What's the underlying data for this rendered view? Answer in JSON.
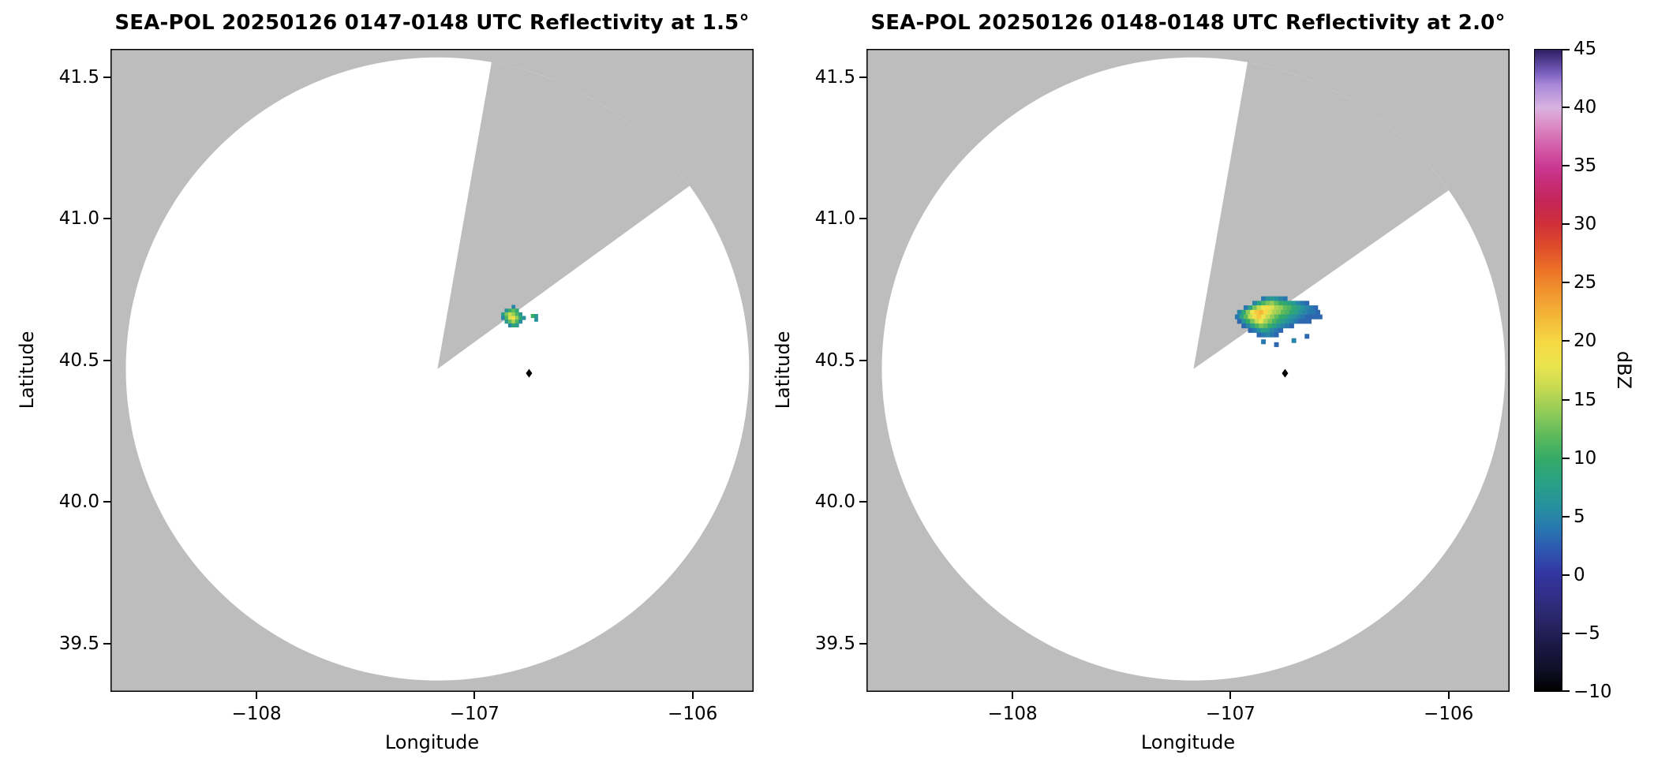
{
  "figure": {
    "background": "#ffffff"
  },
  "chart_data": [
    {
      "type": "radar_ppi_heatmap",
      "title": "SEA-POL 20250126 0147-0148 UTC Reflectivity at 1.5°",
      "xlabel": "Longitude",
      "ylabel": "Latitude",
      "xlim": [
        -108.67,
        -105.72
      ],
      "ylim": [
        39.33,
        41.6
      ],
      "xticks": [
        -108,
        -107,
        -106
      ],
      "yticks": [
        39.5,
        40.0,
        40.5,
        41.0,
        41.5
      ],
      "panel_bg": "#bdbdbd",
      "scan_area_color": "#ffffff",
      "scan": {
        "center_lon": -107.17,
        "center_lat": 40.47,
        "radius_deg_lat": 1.1,
        "missing_sector_azimuth_deg": [
          10,
          54
        ]
      },
      "site_marker": {
        "lon": -106.75,
        "lat": 40.455,
        "color": "#000000",
        "shape": "diamond"
      },
      "echo": {
        "cell_deg": [
          0.016,
          0.013
        ],
        "rows": [
          {
            "lat": 40.689,
            "lon0": -106.83,
            "dbz": [
              5
            ]
          },
          {
            "lat": 40.676,
            "lon0": -106.862,
            "dbz": [
              6,
              10,
              12,
              9
            ]
          },
          {
            "lat": 40.663,
            "lon0": -106.878,
            "dbz": [
              8,
              13,
              16,
              14,
              11,
              7
            ]
          },
          {
            "lat": 40.65,
            "lon0": -106.878,
            "dbz": [
              5,
              11,
              17,
              19,
              14,
              9,
              6
            ]
          },
          {
            "lat": 40.637,
            "lon0": -106.862,
            "dbz": [
              7,
              12,
              15,
              11,
              6
            ]
          },
          {
            "lat": 40.624,
            "lon0": -106.846,
            "dbz": [
              5,
              9,
              7
            ]
          },
          {
            "lat": 40.657,
            "lon0": -106.742,
            "dbz": [
              10,
              7
            ]
          },
          {
            "lat": 40.644,
            "lon0": -106.726,
            "dbz": [
              6
            ]
          }
        ]
      }
    },
    {
      "type": "radar_ppi_heatmap",
      "title": "SEA-POL 20250126 0148-0148 UTC Reflectivity at 2.0°",
      "xlabel": "Longitude",
      "ylabel": "Latitude",
      "xlim": [
        -108.67,
        -105.72
      ],
      "ylim": [
        39.33,
        41.6
      ],
      "xticks": [
        -108,
        -107,
        -106
      ],
      "yticks": [
        39.5,
        40.0,
        40.5,
        41.0,
        41.5
      ],
      "panel_bg": "#bdbdbd",
      "scan_area_color": "#ffffff",
      "scan": {
        "center_lon": -107.17,
        "center_lat": 40.47,
        "radius_deg_lat": 1.1,
        "missing_sector_azimuth_deg": [
          10,
          55
        ]
      },
      "site_marker": {
        "lon": -106.75,
        "lat": 40.455,
        "color": "#000000",
        "shape": "diamond"
      },
      "echo": {
        "cell_deg": [
          0.02,
          0.016
        ],
        "rows": [
          {
            "lat": 40.718,
            "lon0": -106.86,
            "dbz": [
              4,
              6,
              7,
              6,
              5,
              4
            ]
          },
          {
            "lat": 40.702,
            "lon0": -106.9,
            "dbz": [
              5,
              8,
              11,
              13,
              14,
              12,
              10,
              9,
              8,
              7,
              5,
              4,
              3
            ]
          },
          {
            "lat": 40.686,
            "lon0": -106.94,
            "dbz": [
              4,
              8,
              13,
              16,
              18,
              19,
              17,
              15,
              14,
              12,
              11,
              9,
              8,
              6,
              5,
              4,
              3
            ]
          },
          {
            "lat": 40.67,
            "lon0": -106.97,
            "dbz": [
              5,
              9,
              14,
              18,
              21,
              22,
              20,
              17,
              15,
              14,
              12,
              11,
              9,
              8,
              6,
              5,
              4,
              4,
              3
            ]
          },
          {
            "lat": 40.654,
            "lon0": -106.98,
            "dbz": [
              4,
              8,
              12,
              16,
              19,
              21,
              18,
              16,
              14,
              12,
              10,
              9,
              7,
              6,
              5,
              4,
              3,
              3,
              3,
              3
            ]
          },
          {
            "lat": 40.638,
            "lon0": -106.97,
            "dbz": [
              3,
              6,
              10,
              13,
              16,
              18,
              15,
              13,
              11,
              9,
              7,
              6,
              5,
              4,
              3,
              3,
              3
            ]
          },
          {
            "lat": 40.622,
            "lon0": -106.95,
            "dbz": [
              3,
              5,
              8,
              11,
              13,
              12,
              10,
              8,
              6,
              5,
              4,
              3
            ]
          },
          {
            "lat": 40.606,
            "lon0": -106.92,
            "dbz": [
              3,
              4,
              6,
              8,
              7,
              5,
              4,
              3
            ]
          },
          {
            "lat": 40.59,
            "lon0": -106.88,
            "dbz": [
              3,
              4,
              5,
              4,
              3
            ]
          },
          {
            "lat": 40.566,
            "lon0": -106.86,
            "dbz": [
              4
            ]
          },
          {
            "lat": 40.556,
            "lon0": -106.8,
            "dbz": [
              3
            ]
          },
          {
            "lat": 40.57,
            "lon0": -106.72,
            "dbz": [
              5
            ]
          },
          {
            "lat": 40.585,
            "lon0": -106.66,
            "dbz": [
              3
            ]
          }
        ]
      }
    }
  ],
  "colorbar": {
    "label": "dBZ",
    "min": -10,
    "max": 45,
    "ticks": [
      -10,
      -5,
      0,
      5,
      10,
      15,
      20,
      25,
      30,
      35,
      40,
      45
    ],
    "stops": [
      [
        -10,
        "#000000"
      ],
      [
        -8,
        "#10102a"
      ],
      [
        -6,
        "#1c1947"
      ],
      [
        -4,
        "#282566"
      ],
      [
        -2,
        "#312e86"
      ],
      [
        0,
        "#3335a0"
      ],
      [
        2,
        "#2f55b0"
      ],
      [
        4,
        "#2878b0"
      ],
      [
        6,
        "#27929c"
      ],
      [
        8,
        "#2aa184"
      ],
      [
        10,
        "#36ab66"
      ],
      [
        12,
        "#5fbb5c"
      ],
      [
        14,
        "#94cc58"
      ],
      [
        16,
        "#c6da52"
      ],
      [
        18,
        "#ece44e"
      ],
      [
        20,
        "#f5d843"
      ],
      [
        22,
        "#f4b838"
      ],
      [
        24,
        "#f1982f"
      ],
      [
        26,
        "#ec7428"
      ],
      [
        28,
        "#e04e2a"
      ],
      [
        30,
        "#d03038"
      ],
      [
        32,
        "#c42658"
      ],
      [
        34,
        "#c62f7d"
      ],
      [
        35,
        "#cb3a92"
      ],
      [
        37,
        "#d565ae"
      ],
      [
        39,
        "#dd98cd"
      ],
      [
        40,
        "#d8b3e2"
      ],
      [
        42,
        "#a988d8"
      ],
      [
        43,
        "#7a5fc0"
      ],
      [
        45,
        "#2e1f63"
      ]
    ]
  }
}
